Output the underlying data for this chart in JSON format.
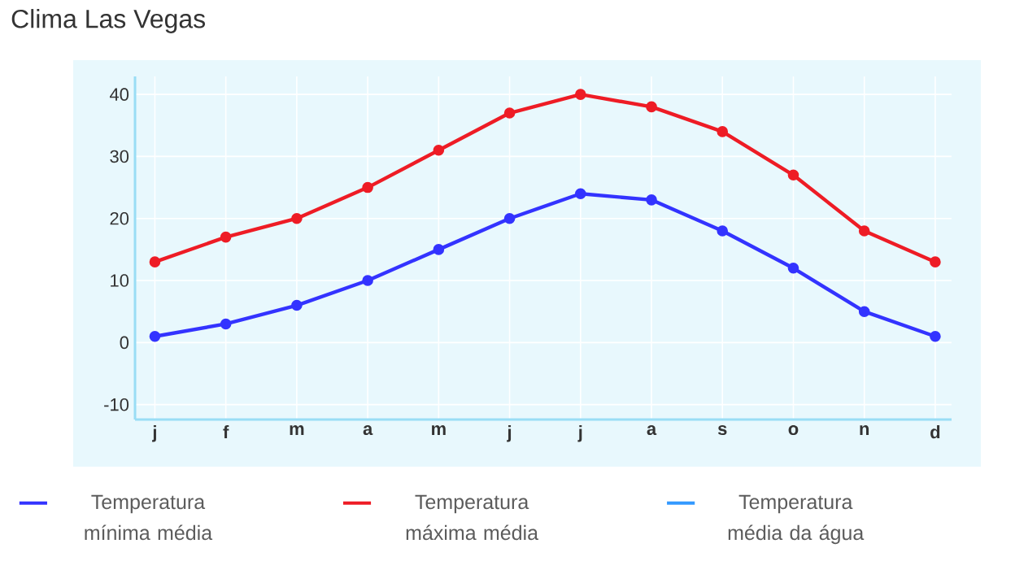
{
  "chart_data": {
    "type": "line",
    "title": "Clima Las Vegas",
    "categories": [
      "j",
      "f",
      "m",
      "a",
      "m",
      "j",
      "j",
      "a",
      "s",
      "o",
      "n",
      "d"
    ],
    "series": [
      {
        "name": "Temperatura mínima média",
        "color": "#3333ff",
        "values": [
          1,
          3,
          6,
          10,
          15,
          20,
          24,
          23,
          18,
          12,
          5,
          1
        ]
      },
      {
        "name": "Temperatura máxima média",
        "color": "#ee1c25",
        "values": [
          13,
          17,
          20,
          25,
          31,
          37,
          40,
          38,
          34,
          27,
          18,
          13
        ]
      },
      {
        "name": "Temperatura média da água",
        "color": "#3399ff",
        "values": [
          null,
          null,
          null,
          null,
          null,
          null,
          null,
          null,
          null,
          null,
          null,
          null
        ]
      }
    ],
    "ylim": [
      -12.4,
      42.9
    ],
    "yticks": [
      -10,
      0,
      10,
      20,
      30,
      40
    ],
    "grid": true,
    "legend": "bottom",
    "marker": "circle",
    "line_style": "solid"
  }
}
